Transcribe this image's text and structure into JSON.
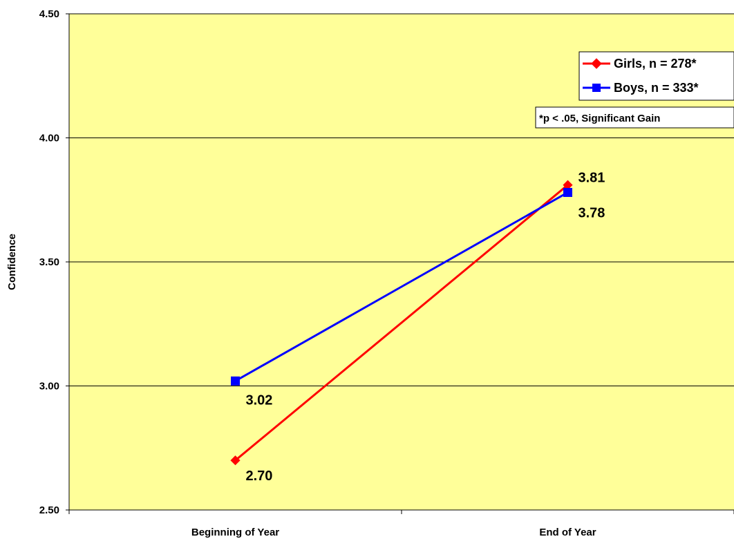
{
  "chart_data": {
    "type": "line",
    "ylabel": "Confidence",
    "xlabel": "",
    "ylim": [
      2.5,
      4.5
    ],
    "y_ticks": [
      "2.50",
      "3.00",
      "3.50",
      "4.00",
      "4.50"
    ],
    "categories": [
      "Beginning of Year",
      "End of Year"
    ],
    "grid": true,
    "legend_position": "top-right",
    "plot_background": "#FFFF99",
    "series": [
      {
        "name": "Girls, n = 278*",
        "color": "#FF0000",
        "marker": "diamond",
        "values": [
          2.7,
          3.81
        ],
        "labels": [
          "2.70",
          "3.81"
        ]
      },
      {
        "name": "Boys, n = 333*",
        "color": "#0000FF",
        "marker": "square",
        "values": [
          3.02,
          3.78
        ],
        "labels": [
          "3.02",
          "3.78"
        ]
      }
    ],
    "annotation": "*p < .05, Significant Gain"
  }
}
